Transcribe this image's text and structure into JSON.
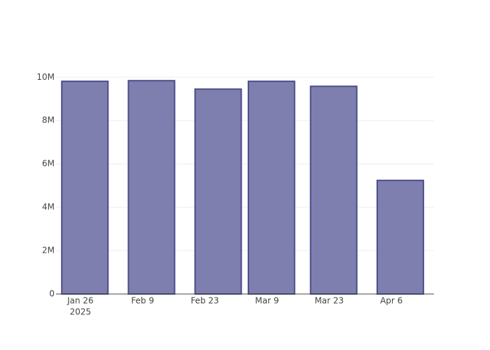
{
  "chart_data": {
    "type": "bar",
    "x": [
      "2025-01-27",
      "2025-02-11",
      "2025-02-26",
      "2025-03-10",
      "2025-03-24",
      "2025-04-08"
    ],
    "values": [
      9810000,
      9840000,
      9450000,
      9810000,
      9580000,
      5240000
    ],
    "color": "#7f7faf",
    "xlim": [
      "2025-01-20T12:00",
      "2025-04-15T14:00"
    ],
    "xticks": [
      {
        "value": "2025-01-26",
        "label": "Jan 26",
        "year": "2025"
      },
      {
        "value": "2025-02-09",
        "label": "Feb 9"
      },
      {
        "value": "2025-02-23",
        "label": "Feb 23"
      },
      {
        "value": "2025-03-09",
        "label": "Mar 9"
      },
      {
        "value": "2025-03-23",
        "label": "Mar 23"
      },
      {
        "value": "2025-04-06",
        "label": "Apr 6"
      }
    ],
    "ylim": [
      0,
      10300000
    ],
    "yticks": [
      {
        "value": 0,
        "label": "0"
      },
      {
        "value": 2000000,
        "label": "2M"
      },
      {
        "value": 4000000,
        "label": "4M"
      },
      {
        "value": 6000000,
        "label": "6M"
      },
      {
        "value": 8000000,
        "label": "8M"
      },
      {
        "value": 10000000,
        "label": "10M"
      }
    ],
    "grid": true
  }
}
